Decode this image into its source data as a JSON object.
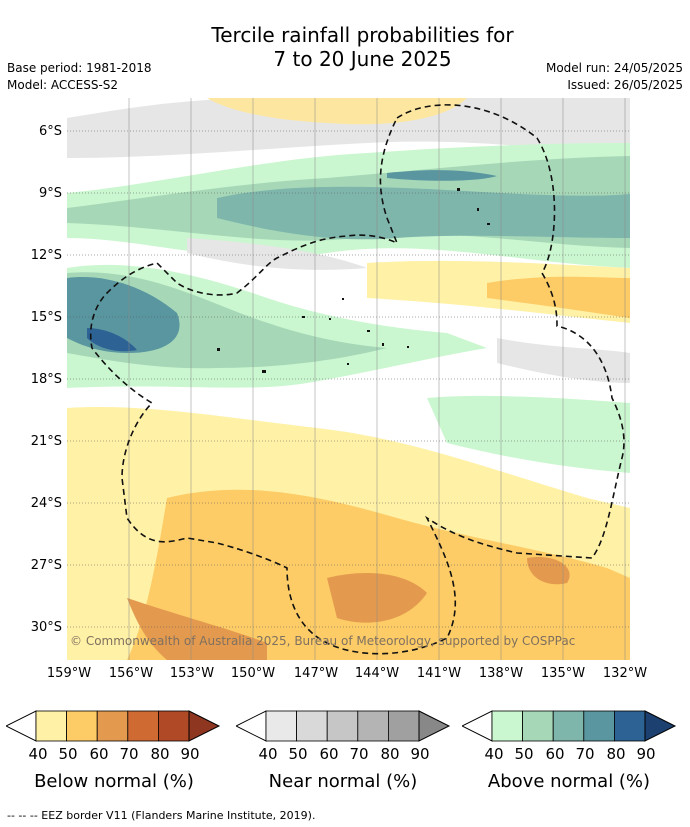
{
  "title": {
    "line1": "Tercile rainfall probabilities for",
    "line2": "7 to 20 June 2025"
  },
  "meta": {
    "base_period": "Base period: 1981-2018",
    "model": "Model: ACCESS-S2",
    "model_run": "Model run: 24/05/2025",
    "issued": "Issued: 26/05/2025"
  },
  "map": {
    "latitudes": [
      "6°S",
      "9°S",
      "12°S",
      "15°S",
      "18°S",
      "21°S",
      "24°S",
      "27°S",
      "30°S"
    ],
    "longitudes": [
      "159°W",
      "156°W",
      "153°W",
      "150°W",
      "147°W",
      "144°W",
      "141°W",
      "138°W",
      "135°W",
      "132°W"
    ],
    "copyright": "© Commonwealth of Australia 2025, Bureau of Meteorology, supported by COSPPac"
  },
  "colorbars": [
    {
      "title": "Below normal (%)",
      "ticks": [
        "40",
        "50",
        "60",
        "70",
        "80",
        "90"
      ],
      "colors": [
        "#fff1a6",
        "#fdcc66",
        "#e49a4e",
        "#d06a33",
        "#b04a26",
        "#8e3620"
      ]
    },
    {
      "title": "Near normal (%)",
      "ticks": [
        "40",
        "50",
        "60",
        "70",
        "80",
        "90"
      ],
      "colors": [
        "#e9e9e9",
        "#d9d9d9",
        "#c6c6c6",
        "#b4b4b4",
        "#a0a0a0",
        "#888888"
      ]
    },
    {
      "title": "Above normal (%)",
      "ticks": [
        "40",
        "50",
        "60",
        "70",
        "80",
        "90"
      ],
      "colors": [
        "#caf7cf",
        "#a6d8b8",
        "#7fb6ac",
        "#5a96a0",
        "#2d6294",
        "#1c4070"
      ]
    }
  ],
  "footnote": "--  --  -- EEZ border V11 (Flanders Marine Institute, 2019)."
}
